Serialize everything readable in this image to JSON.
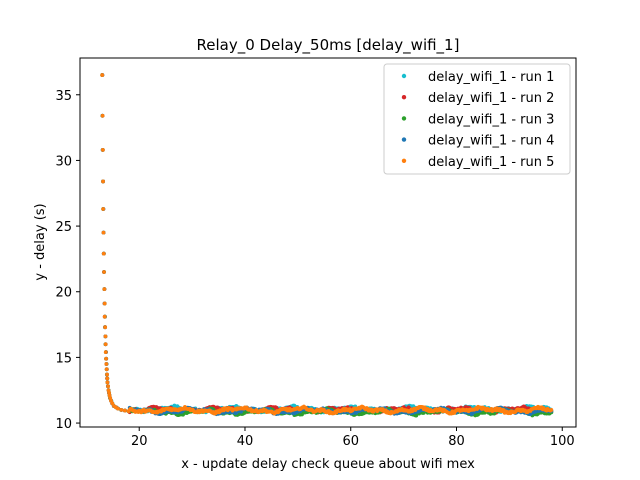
{
  "chart_data": {
    "type": "scatter",
    "title": "Relay_0 Delay_50ms [delay_wifi_1]",
    "xlabel": "x - update delay check queue about wifi mex",
    "ylabel": "y - delay (s)",
    "xlim": [
      8.8,
      102.6
    ],
    "ylim": [
      9.7,
      37.8
    ],
    "xticks": [
      20,
      40,
      60,
      80,
      100
    ],
    "yticks": [
      10,
      15,
      20,
      25,
      30,
      35
    ],
    "grid": false,
    "legend_position": "top-right",
    "curve": {
      "x_start": 13,
      "x_end": 98,
      "initial_points": [
        [
          13.0,
          36.5
        ],
        [
          13.05,
          33.4
        ],
        [
          13.1,
          30.8
        ],
        [
          13.15,
          28.4
        ],
        [
          13.2,
          26.3
        ],
        [
          13.25,
          24.5
        ],
        [
          13.3,
          22.9
        ],
        [
          13.35,
          21.5
        ],
        [
          13.4,
          20.2
        ],
        [
          13.45,
          19.1
        ],
        [
          13.5,
          18.1
        ],
        [
          13.55,
          17.3
        ],
        [
          13.6,
          16.6
        ],
        [
          13.65,
          16.0
        ],
        [
          13.7,
          15.4
        ],
        [
          13.75,
          14.9
        ],
        [
          13.8,
          14.5
        ],
        [
          13.85,
          14.1
        ],
        [
          13.9,
          13.7
        ],
        [
          13.95,
          13.4
        ],
        [
          14.0,
          13.1
        ],
        [
          14.1,
          12.8
        ],
        [
          14.2,
          12.5
        ],
        [
          14.3,
          12.3
        ],
        [
          14.4,
          12.1
        ],
        [
          14.5,
          11.9
        ],
        [
          14.7,
          11.7
        ],
        [
          14.9,
          11.5
        ],
        [
          15.2,
          11.3
        ],
        [
          15.6,
          11.2
        ],
        [
          16.0,
          11.1
        ],
        [
          16.6,
          11.0
        ],
        [
          17.3,
          10.95
        ],
        [
          18.0,
          10.9
        ]
      ],
      "plateau": 10.95
    },
    "series": [
      {
        "name": "delay_wifi_1 - run 1",
        "color": "#17becf",
        "offset": 0.12
      },
      {
        "name": "delay_wifi_1 - run 2",
        "color": "#d62728",
        "offset": 0.05
      },
      {
        "name": "delay_wifi_1 - run 3",
        "color": "#2ca02c",
        "offset": -0.1
      },
      {
        "name": "delay_wifi_1 - run 4",
        "color": "#1f77b4",
        "offset": -0.02
      },
      {
        "name": "delay_wifi_1 - run 5",
        "color": "#ff7f0e",
        "offset": 0.03
      }
    ]
  }
}
